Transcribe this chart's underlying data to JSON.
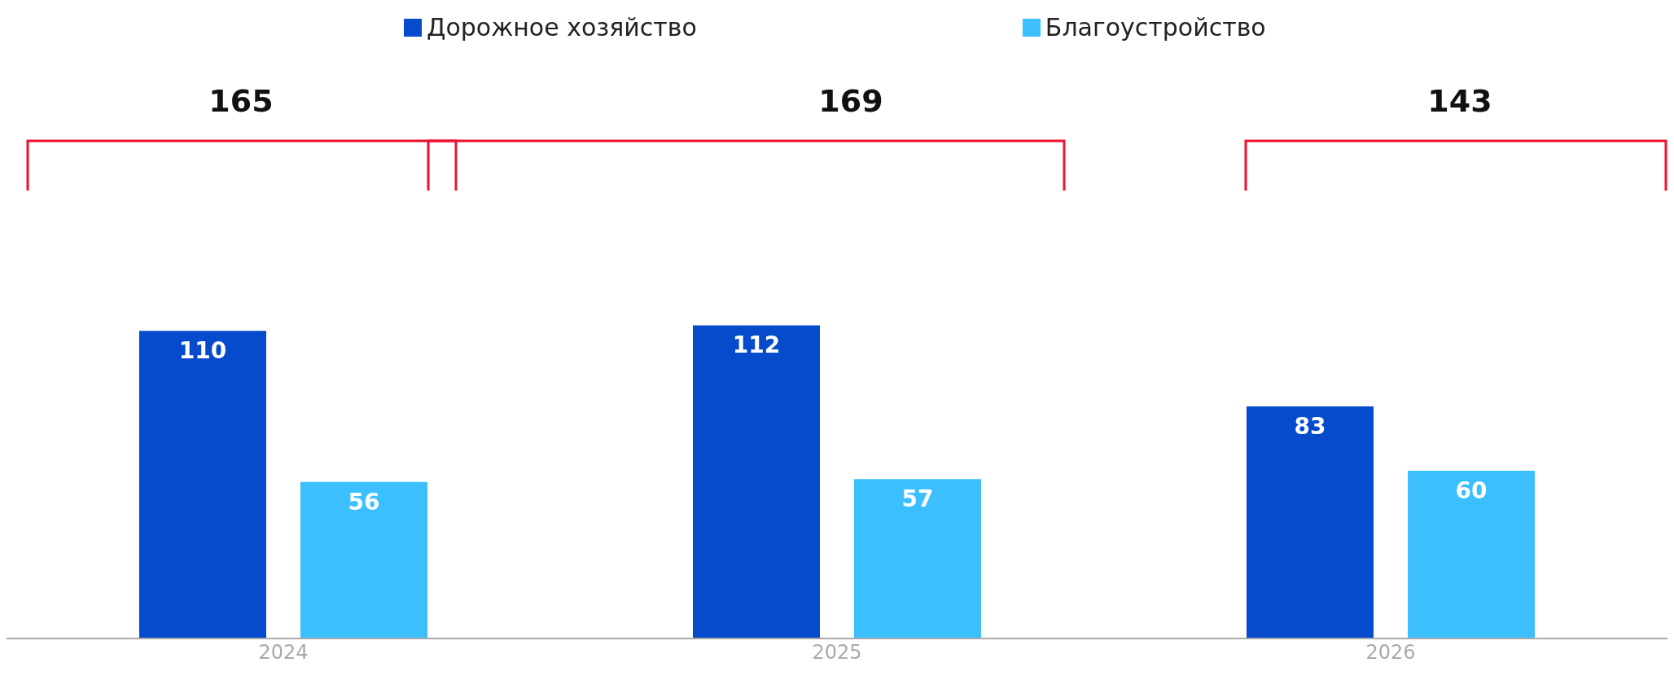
{
  "chart_data": {
    "type": "bar",
    "categories": [
      "2024",
      "2025",
      "2026"
    ],
    "series": [
      {
        "name": "Дорожное хозяйство",
        "color": "#054bcc",
        "values": [
          110,
          112,
          83
        ]
      },
      {
        "name": "Благоустройство",
        "color": "#3bbfff",
        "values": [
          56,
          57,
          60
        ]
      }
    ],
    "data_labels": true,
    "annotations": [
      "165",
      "169",
      "143"
    ],
    "legend": "top"
  }
}
